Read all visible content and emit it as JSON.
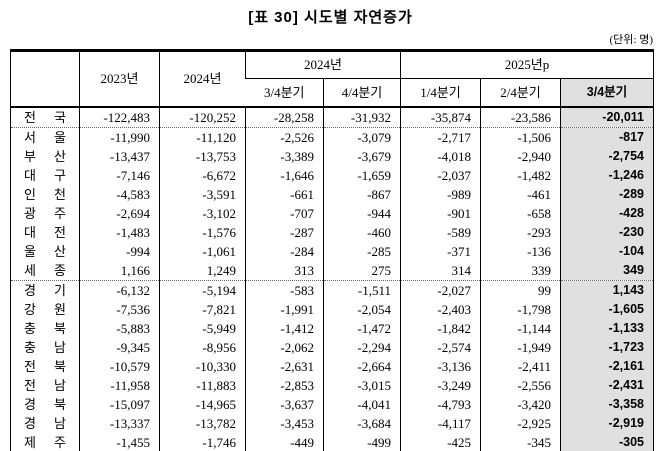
{
  "title": "[표 30] 시도별 자연증가",
  "unit_note": "(단위: 명)",
  "colors": {
    "highlight_bg": "#e0e0e0",
    "border": "#000000",
    "text": "#000000"
  },
  "table": {
    "col_headers": {
      "y2023": "2023년",
      "y2024": "2024년",
      "group_2024": "2024년",
      "group_2025": "2025년p",
      "q_2024_3": "3/4분기",
      "q_2024_4": "4/4분기",
      "q_2025_1": "1/4분기",
      "q_2025_2": "2/4분기",
      "q_2025_3": "3/4분기"
    },
    "rows": [
      {
        "region": "전 국",
        "values": [
          "-122,483",
          "-120,252",
          "-28,258",
          "-31,932",
          "-35,874",
          "-23,586",
          "-20,011"
        ],
        "divider_after": true
      },
      {
        "region": "서 울",
        "values": [
          "-11,990",
          "-11,120",
          "-2,526",
          "-3,079",
          "-2,717",
          "-1,506",
          "-817"
        ],
        "divider_after": false
      },
      {
        "region": "부 산",
        "values": [
          "-13,437",
          "-13,753",
          "-3,389",
          "-3,679",
          "-4,018",
          "-2,940",
          "-2,754"
        ],
        "divider_after": false
      },
      {
        "region": "대 구",
        "values": [
          "-7,146",
          "-6,672",
          "-1,646",
          "-1,659",
          "-2,037",
          "-1,482",
          "-1,246"
        ],
        "divider_after": false
      },
      {
        "region": "인 천",
        "values": [
          "-4,583",
          "-3,591",
          "-661",
          "-867",
          "-989",
          "-461",
          "-289"
        ],
        "divider_after": false
      },
      {
        "region": "광 주",
        "values": [
          "-2,694",
          "-3,102",
          "-707",
          "-944",
          "-901",
          "-658",
          "-428"
        ],
        "divider_after": false
      },
      {
        "region": "대 전",
        "values": [
          "-1,483",
          "-1,576",
          "-287",
          "-460",
          "-589",
          "-293",
          "-230"
        ],
        "divider_after": false
      },
      {
        "region": "울 산",
        "values": [
          "-994",
          "-1,061",
          "-284",
          "-285",
          "-371",
          "-136",
          "-104"
        ],
        "divider_after": false
      },
      {
        "region": "세 종",
        "values": [
          "1,166",
          "1,249",
          "313",
          "275",
          "314",
          "339",
          "349"
        ],
        "divider_after": true
      },
      {
        "region": "경 기",
        "values": [
          "-6,132",
          "-5,194",
          "-583",
          "-1,511",
          "-2,027",
          "99",
          "1,143"
        ],
        "divider_after": false
      },
      {
        "region": "강 원",
        "values": [
          "-7,536",
          "-7,821",
          "-1,991",
          "-2,054",
          "-2,403",
          "-1,798",
          "-1,605"
        ],
        "divider_after": false
      },
      {
        "region": "충 북",
        "values": [
          "-5,883",
          "-5,949",
          "-1,412",
          "-1,472",
          "-1,842",
          "-1,144",
          "-1,133"
        ],
        "divider_after": false
      },
      {
        "region": "충 남",
        "values": [
          "-9,345",
          "-8,956",
          "-2,062",
          "-2,294",
          "-2,574",
          "-1,949",
          "-1,723"
        ],
        "divider_after": false
      },
      {
        "region": "전 북",
        "values": [
          "-10,579",
          "-10,330",
          "-2,631",
          "-2,664",
          "-3,136",
          "-2,411",
          "-2,161"
        ],
        "divider_after": false
      },
      {
        "region": "전 남",
        "values": [
          "-11,958",
          "-11,883",
          "-2,853",
          "-3,015",
          "-3,249",
          "-2,556",
          "-2,431"
        ],
        "divider_after": false
      },
      {
        "region": "경 북",
        "values": [
          "-15,097",
          "-14,965",
          "-3,637",
          "-4,041",
          "-4,793",
          "-3,420",
          "-3,358"
        ],
        "divider_after": false
      },
      {
        "region": "경 남",
        "values": [
          "-13,337",
          "-13,782",
          "-3,453",
          "-3,684",
          "-4,117",
          "-2,925",
          "-2,919"
        ],
        "divider_after": false
      },
      {
        "region": "제 주",
        "values": [
          "-1,455",
          "-1,746",
          "-449",
          "-499",
          "-425",
          "-345",
          "-305"
        ],
        "divider_after": false
      }
    ]
  }
}
